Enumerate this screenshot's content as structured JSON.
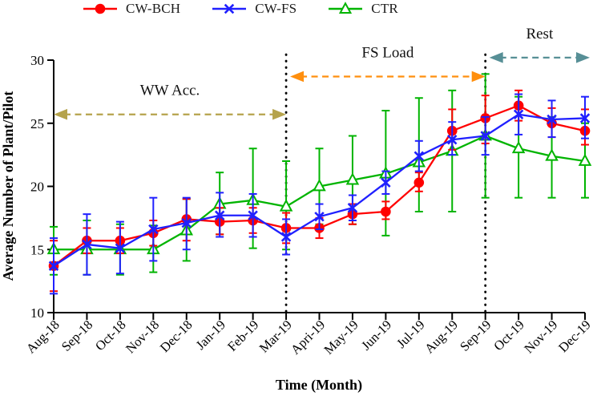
{
  "legend": {
    "items": [
      {
        "label": "CW-BCH",
        "color": "#FF0000",
        "marker": "circle"
      },
      {
        "label": "CW-FS",
        "color": "#2020FF",
        "marker": "x"
      },
      {
        "label": "CTR",
        "color": "#00B400",
        "marker": "triangle"
      }
    ]
  },
  "chart_data": {
    "type": "line",
    "title": "",
    "xlabel": "Time (Month)",
    "ylabel": "Average Number of Plant/Pilot",
    "ylim": [
      10,
      30
    ],
    "yticks": [
      10,
      15,
      20,
      25,
      30
    ],
    "grid": false,
    "legend_position": "top",
    "categories": [
      "Aug-18",
      "Sep-18",
      "Oct-18",
      "Nov-18",
      "Dec-18",
      "Jan-19",
      "Feb-19",
      "Mar-19",
      "Apri-19",
      "May-19",
      "Jun-19",
      "Jul-19",
      "Aug-19",
      "Sep-19",
      "Oct-19",
      "Nov-19",
      "Dec-19"
    ],
    "series": [
      {
        "name": "CW-BCH",
        "color": "#FF0000",
        "marker": "circle",
        "values": [
          13.7,
          15.7,
          15.7,
          16.3,
          17.4,
          17.2,
          17.3,
          16.7,
          16.7,
          17.8,
          18.0,
          20.3,
          24.4,
          25.4,
          26.4,
          25.0,
          24.4
        ],
        "err_lo": [
          11.7,
          14.7,
          14.7,
          15.3,
          15.7,
          16.2,
          16.3,
          15.5,
          15.9,
          17.0,
          17.4,
          19.6,
          22.9,
          23.4,
          25.2,
          23.9,
          23.3
        ],
        "err_hi": [
          15.7,
          16.7,
          16.7,
          17.3,
          19.0,
          18.3,
          18.3,
          17.9,
          17.5,
          18.6,
          18.8,
          21.1,
          26.1,
          27.2,
          27.6,
          26.2,
          26.1
        ]
      },
      {
        "name": "CW-FS",
        "color": "#2020FF",
        "marker": "x",
        "values": [
          13.7,
          15.4,
          15.1,
          16.6,
          17.1,
          17.7,
          17.7,
          16.0,
          17.6,
          18.3,
          20.3,
          22.4,
          23.7,
          24.0,
          25.7,
          25.3,
          25.4
        ],
        "err_lo": [
          11.5,
          13.0,
          13.1,
          14.1,
          15.0,
          16.0,
          16.0,
          14.6,
          16.6,
          17.3,
          19.4,
          21.2,
          22.5,
          22.5,
          24.1,
          23.9,
          23.8
        ],
        "err_hi": [
          15.9,
          17.8,
          17.2,
          19.1,
          19.1,
          19.5,
          19.4,
          17.4,
          18.6,
          19.3,
          21.2,
          23.6,
          25.1,
          25.5,
          27.3,
          26.8,
          27.1
        ]
      },
      {
        "name": "CTR",
        "color": "#00B400",
        "marker": "triangle",
        "values": [
          15.0,
          15.0,
          15.0,
          15.0,
          16.5,
          18.6,
          18.9,
          18.4,
          20.0,
          20.5,
          21.0,
          21.9,
          22.8,
          24.0,
          23.0,
          22.4,
          22.0
        ],
        "err_lo": [
          13.0,
          13.0,
          13.0,
          13.2,
          14.1,
          16.2,
          15.1,
          15.0,
          17.0,
          17.0,
          16.1,
          18.0,
          18.0,
          19.1,
          19.1,
          19.1,
          19.1
        ],
        "err_hi": [
          16.8,
          17.3,
          17.0,
          16.9,
          19.0,
          21.1,
          23.0,
          22.0,
          23.0,
          24.0,
          26.0,
          27.0,
          27.6,
          28.9,
          27.1,
          25.5,
          25.0
        ]
      }
    ],
    "annotations": {
      "phase_arrows": [
        {
          "label": "WW Acc.",
          "color": "#B5A34B",
          "from_month": "Aug-18",
          "to_month": "Mar-19",
          "from_index": 0,
          "to_index": 7,
          "y_value": 25.7
        },
        {
          "label": "FS Load",
          "color": "#FF8F0E",
          "from_month": "Mar-19",
          "to_month": "Sep-19",
          "from_index": 7,
          "to_index": 13,
          "y_value": 28.7
        },
        {
          "label": "Rest",
          "color": "#578F96",
          "from_month": "Sep-19",
          "to_month": "Dec-19",
          "from_index": 13,
          "to_index": 16,
          "y_value": 30.2
        }
      ],
      "vlines": [
        {
          "month": "Mar-19",
          "index": 7
        },
        {
          "month": "Sep-19",
          "index": 13
        }
      ]
    }
  }
}
